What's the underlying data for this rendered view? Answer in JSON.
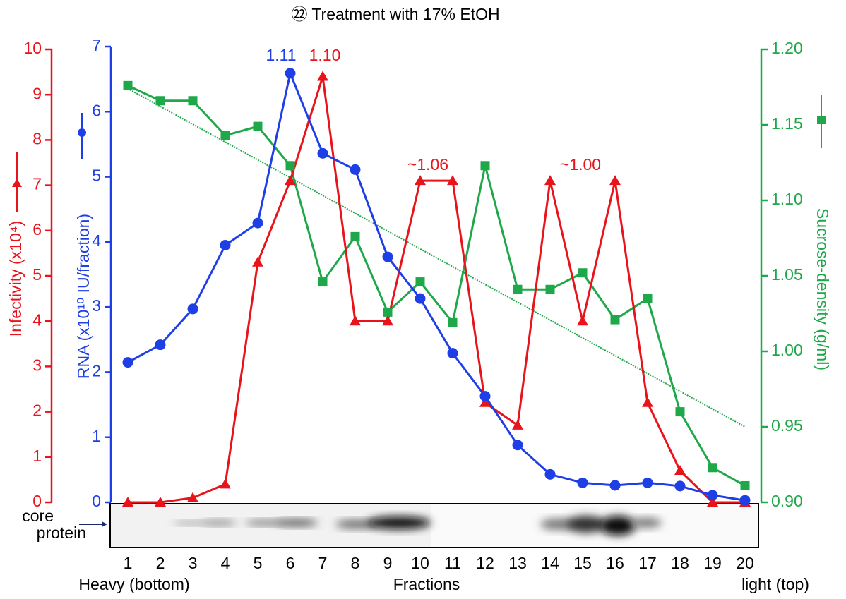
{
  "chart_data": {
    "type": "line",
    "title": "㉒ Treatment with 17% EtOH",
    "categories": [
      "1",
      "2",
      "3",
      "4",
      "5",
      "6",
      "7",
      "8",
      "9",
      "10",
      "11",
      "12",
      "13",
      "14",
      "15",
      "16",
      "17",
      "18",
      "19",
      "20"
    ],
    "series": [
      {
        "color": "#e8131b",
        "marker": "triangle",
        "axis": "y",
        "values": [
          0,
          0,
          0.1,
          0.4,
          5.3,
          7.1,
          9.4,
          4.0,
          4.0,
          7.1,
          7.1,
          2.2,
          1.7,
          7.1,
          4.0,
          7.1,
          2.2,
          0.7,
          0,
          0
        ]
      },
      {
        "color": "#1f3fe6",
        "marker": "circle",
        "axis": "y3",
        "values": [
          2.15,
          2.42,
          2.97,
          3.95,
          4.29,
          6.59,
          5.36,
          5.11,
          3.77,
          3.13,
          2.29,
          1.63,
          0.88,
          0.43,
          0.3,
          0.26,
          0.3,
          0.25,
          0.11,
          0.03
        ]
      },
      {
        "color": "#1fa84a",
        "marker": "square",
        "axis": "y2",
        "values": [
          1.176,
          1.166,
          1.166,
          1.143,
          1.149,
          1.123,
          1.046,
          1.076,
          1.026,
          1.046,
          1.019,
          1.123,
          1.041,
          1.041,
          1.052,
          1.021,
          1.035,
          0.96,
          0.923,
          0.911
        ]
      }
    ],
    "trendline": {
      "color": "#1fa84a",
      "axis": "y2",
      "start": 1.174,
      "end": 0.95
    },
    "annotations": [
      {
        "text": "1.11",
        "color": "#1f3fe6"
      },
      {
        "text": "1.10",
        "color": "#e8131b"
      },
      {
        "text": "~1.06",
        "color": "#e8131b"
      },
      {
        "text": "~1.00",
        "color": "#e8131b"
      }
    ],
    "ylabel": "Infectivity (x10⁴)",
    "y3label": "RNA (x10¹⁰ IU/fraction)",
    "y2label": "Sucrose-density (g/ml)",
    "xlabel": "Fractions",
    "x_left_label": "Heavy (bottom)",
    "x_right_label": "light (top)",
    "blot_label": [
      "core",
      "protein"
    ],
    "ylim": [
      0,
      10
    ],
    "yticks": [
      0,
      1,
      2,
      3,
      4,
      5,
      6,
      7,
      8,
      9,
      10
    ],
    "y3lim": [
      0,
      7
    ],
    "y3ticks": [
      0,
      1,
      2,
      3,
      4,
      5,
      6,
      7
    ],
    "y2lim": [
      0.9,
      1.2
    ],
    "y2ticks": [
      {
        "value": 0.9,
        "label": "0.90"
      },
      0.95,
      {
        "value": 1.0,
        "label": "1.00"
      },
      1.05,
      {
        "value": 1.1,
        "label": "1.10"
      },
      1.15,
      {
        "value": 1.2,
        "label": "1.20"
      }
    ]
  }
}
